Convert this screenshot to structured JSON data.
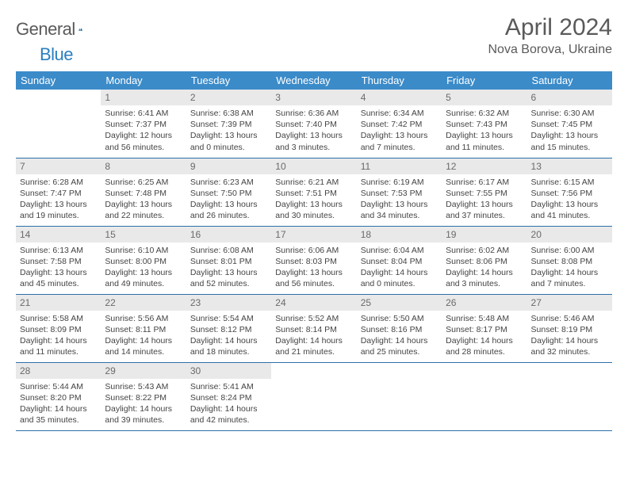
{
  "brand": {
    "part1": "General",
    "part2": "Blue"
  },
  "title": "April 2024",
  "location": "Nova Borova, Ukraine",
  "colors": {
    "header_bg": "#3b8bc9",
    "header_text": "#ffffff",
    "daynum_bg": "#e9e9e9",
    "text": "#444444",
    "rule": "#2d6fa8",
    "logo_gray": "#5a5a5a",
    "logo_blue": "#2a7fbf"
  },
  "day_headers": [
    "Sunday",
    "Monday",
    "Tuesday",
    "Wednesday",
    "Thursday",
    "Friday",
    "Saturday"
  ],
  "weeks": [
    [
      {
        "n": "",
        "lines": []
      },
      {
        "n": "1",
        "lines": [
          "Sunrise: 6:41 AM",
          "Sunset: 7:37 PM",
          "Daylight: 12 hours",
          "and 56 minutes."
        ]
      },
      {
        "n": "2",
        "lines": [
          "Sunrise: 6:38 AM",
          "Sunset: 7:39 PM",
          "Daylight: 13 hours",
          "and 0 minutes."
        ]
      },
      {
        "n": "3",
        "lines": [
          "Sunrise: 6:36 AM",
          "Sunset: 7:40 PM",
          "Daylight: 13 hours",
          "and 3 minutes."
        ]
      },
      {
        "n": "4",
        "lines": [
          "Sunrise: 6:34 AM",
          "Sunset: 7:42 PM",
          "Daylight: 13 hours",
          "and 7 minutes."
        ]
      },
      {
        "n": "5",
        "lines": [
          "Sunrise: 6:32 AM",
          "Sunset: 7:43 PM",
          "Daylight: 13 hours",
          "and 11 minutes."
        ]
      },
      {
        "n": "6",
        "lines": [
          "Sunrise: 6:30 AM",
          "Sunset: 7:45 PM",
          "Daylight: 13 hours",
          "and 15 minutes."
        ]
      }
    ],
    [
      {
        "n": "7",
        "lines": [
          "Sunrise: 6:28 AM",
          "Sunset: 7:47 PM",
          "Daylight: 13 hours",
          "and 19 minutes."
        ]
      },
      {
        "n": "8",
        "lines": [
          "Sunrise: 6:25 AM",
          "Sunset: 7:48 PM",
          "Daylight: 13 hours",
          "and 22 minutes."
        ]
      },
      {
        "n": "9",
        "lines": [
          "Sunrise: 6:23 AM",
          "Sunset: 7:50 PM",
          "Daylight: 13 hours",
          "and 26 minutes."
        ]
      },
      {
        "n": "10",
        "lines": [
          "Sunrise: 6:21 AM",
          "Sunset: 7:51 PM",
          "Daylight: 13 hours",
          "and 30 minutes."
        ]
      },
      {
        "n": "11",
        "lines": [
          "Sunrise: 6:19 AM",
          "Sunset: 7:53 PM",
          "Daylight: 13 hours",
          "and 34 minutes."
        ]
      },
      {
        "n": "12",
        "lines": [
          "Sunrise: 6:17 AM",
          "Sunset: 7:55 PM",
          "Daylight: 13 hours",
          "and 37 minutes."
        ]
      },
      {
        "n": "13",
        "lines": [
          "Sunrise: 6:15 AM",
          "Sunset: 7:56 PM",
          "Daylight: 13 hours",
          "and 41 minutes."
        ]
      }
    ],
    [
      {
        "n": "14",
        "lines": [
          "Sunrise: 6:13 AM",
          "Sunset: 7:58 PM",
          "Daylight: 13 hours",
          "and 45 minutes."
        ]
      },
      {
        "n": "15",
        "lines": [
          "Sunrise: 6:10 AM",
          "Sunset: 8:00 PM",
          "Daylight: 13 hours",
          "and 49 minutes."
        ]
      },
      {
        "n": "16",
        "lines": [
          "Sunrise: 6:08 AM",
          "Sunset: 8:01 PM",
          "Daylight: 13 hours",
          "and 52 minutes."
        ]
      },
      {
        "n": "17",
        "lines": [
          "Sunrise: 6:06 AM",
          "Sunset: 8:03 PM",
          "Daylight: 13 hours",
          "and 56 minutes."
        ]
      },
      {
        "n": "18",
        "lines": [
          "Sunrise: 6:04 AM",
          "Sunset: 8:04 PM",
          "Daylight: 14 hours",
          "and 0 minutes."
        ]
      },
      {
        "n": "19",
        "lines": [
          "Sunrise: 6:02 AM",
          "Sunset: 8:06 PM",
          "Daylight: 14 hours",
          "and 3 minutes."
        ]
      },
      {
        "n": "20",
        "lines": [
          "Sunrise: 6:00 AM",
          "Sunset: 8:08 PM",
          "Daylight: 14 hours",
          "and 7 minutes."
        ]
      }
    ],
    [
      {
        "n": "21",
        "lines": [
          "Sunrise: 5:58 AM",
          "Sunset: 8:09 PM",
          "Daylight: 14 hours",
          "and 11 minutes."
        ]
      },
      {
        "n": "22",
        "lines": [
          "Sunrise: 5:56 AM",
          "Sunset: 8:11 PM",
          "Daylight: 14 hours",
          "and 14 minutes."
        ]
      },
      {
        "n": "23",
        "lines": [
          "Sunrise: 5:54 AM",
          "Sunset: 8:12 PM",
          "Daylight: 14 hours",
          "and 18 minutes."
        ]
      },
      {
        "n": "24",
        "lines": [
          "Sunrise: 5:52 AM",
          "Sunset: 8:14 PM",
          "Daylight: 14 hours",
          "and 21 minutes."
        ]
      },
      {
        "n": "25",
        "lines": [
          "Sunrise: 5:50 AM",
          "Sunset: 8:16 PM",
          "Daylight: 14 hours",
          "and 25 minutes."
        ]
      },
      {
        "n": "26",
        "lines": [
          "Sunrise: 5:48 AM",
          "Sunset: 8:17 PM",
          "Daylight: 14 hours",
          "and 28 minutes."
        ]
      },
      {
        "n": "27",
        "lines": [
          "Sunrise: 5:46 AM",
          "Sunset: 8:19 PM",
          "Daylight: 14 hours",
          "and 32 minutes."
        ]
      }
    ],
    [
      {
        "n": "28",
        "lines": [
          "Sunrise: 5:44 AM",
          "Sunset: 8:20 PM",
          "Daylight: 14 hours",
          "and 35 minutes."
        ]
      },
      {
        "n": "29",
        "lines": [
          "Sunrise: 5:43 AM",
          "Sunset: 8:22 PM",
          "Daylight: 14 hours",
          "and 39 minutes."
        ]
      },
      {
        "n": "30",
        "lines": [
          "Sunrise: 5:41 AM",
          "Sunset: 8:24 PM",
          "Daylight: 14 hours",
          "and 42 minutes."
        ]
      },
      {
        "n": "",
        "lines": []
      },
      {
        "n": "",
        "lines": []
      },
      {
        "n": "",
        "lines": []
      },
      {
        "n": "",
        "lines": []
      }
    ]
  ]
}
